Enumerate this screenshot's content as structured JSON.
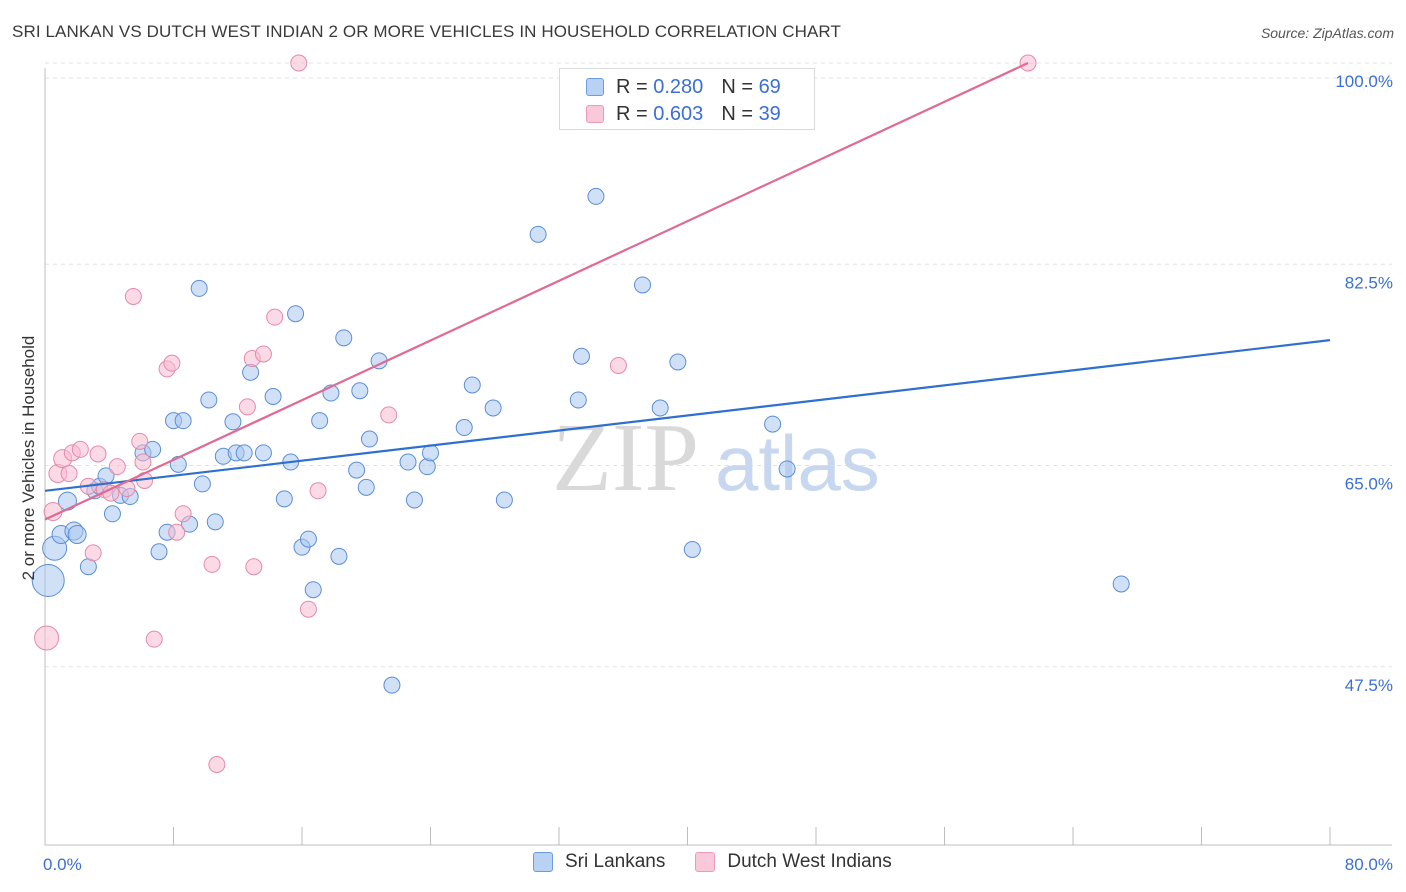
{
  "header": {
    "title": "SRI LANKAN VS DUTCH WEST INDIAN 2 OR MORE VEHICLES IN HOUSEHOLD CORRELATION CHART",
    "source": "Source: ZipAtlas.com"
  },
  "watermark": {
    "zip": "ZIP",
    "atlas": "atlas"
  },
  "legend": {
    "rows": [
      {
        "r_label": "R =",
        "r_value": "0.280",
        "n_label": "N =",
        "n_value": "69"
      },
      {
        "r_label": "R =",
        "r_value": "0.603",
        "n_label": "N =",
        "n_value": "39"
      }
    ]
  },
  "bottom_legend": {
    "series_a": "Sri Lankans",
    "series_b": "Dutch West Indians"
  },
  "colors": {
    "blue_fill": "#a9c6f0",
    "blue_stroke": "#5b8ed6",
    "blue_line": "#2f6fcf",
    "pink_fill": "#f7bcd0",
    "pink_stroke": "#e58aa8",
    "pink_line": "#e06a93",
    "tick_label": "#3b6fd3",
    "grid": "#e2e2e2"
  },
  "chart_data": {
    "type": "scatter",
    "title": "SRI LANKAN VS DUTCH WEST INDIAN 2 OR MORE VEHICLES IN HOUSEHOLD CORRELATION CHART",
    "xlabel": "",
    "ylabel": "2 or more Vehicles in Household",
    "xlim": [
      0,
      80
    ],
    "ylim": [
      32,
      102
    ],
    "x_tick_labels": [
      "0.0%",
      "80.0%"
    ],
    "y_ticks": [
      {
        "value": 100,
        "label": "100.0%"
      },
      {
        "value": 82.5,
        "label": "82.5%"
      },
      {
        "value": 65,
        "label": "65.0%"
      },
      {
        "value": 47.5,
        "label": "47.5%"
      }
    ],
    "series": [
      {
        "name": "Sri Lankans",
        "color": "blue",
        "trend": {
          "x": [
            0,
            80
          ],
          "y": [
            62.8,
            75.9
          ]
        },
        "points": [
          [
            0.2,
            55.0,
            16
          ],
          [
            0.6,
            57.8,
            12
          ],
          [
            1.0,
            59.0,
            9
          ],
          [
            1.4,
            61.9,
            9
          ],
          [
            1.8,
            59.3,
            9
          ],
          [
            2.0,
            59.0,
            9
          ],
          [
            2.7,
            56.2,
            8
          ],
          [
            3.1,
            62.8,
            8
          ],
          [
            3.4,
            63.2,
            8
          ],
          [
            3.8,
            64.1,
            8
          ],
          [
            4.2,
            60.8,
            8
          ],
          [
            4.7,
            62.4,
            8
          ],
          [
            5.3,
            62.3,
            8
          ],
          [
            6.1,
            66.1,
            8
          ],
          [
            6.7,
            66.4,
            8
          ],
          [
            7.1,
            57.5,
            8
          ],
          [
            7.6,
            59.2,
            8
          ],
          [
            8.3,
            65.1,
            8
          ],
          [
            8.0,
            68.9,
            8
          ],
          [
            8.6,
            68.9,
            8
          ],
          [
            9.0,
            59.9,
            8
          ],
          [
            9.8,
            63.4,
            8
          ],
          [
            10.2,
            70.7,
            8
          ],
          [
            10.6,
            60.1,
            8
          ],
          [
            9.6,
            80.4,
            8
          ],
          [
            11.1,
            65.8,
            8
          ],
          [
            11.7,
            68.8,
            8
          ],
          [
            11.9,
            66.1,
            8
          ],
          [
            12.4,
            66.1,
            8
          ],
          [
            12.8,
            73.1,
            8
          ],
          [
            13.6,
            66.1,
            8
          ],
          [
            14.2,
            71.0,
            8
          ],
          [
            14.9,
            62.1,
            8
          ],
          [
            15.3,
            65.3,
            8
          ],
          [
            15.6,
            78.2,
            8
          ],
          [
            16.0,
            57.9,
            8
          ],
          [
            16.4,
            58.6,
            8
          ],
          [
            16.7,
            54.2,
            8
          ],
          [
            17.1,
            68.9,
            8
          ],
          [
            17.8,
            71.3,
            8
          ],
          [
            18.3,
            57.1,
            8
          ],
          [
            18.6,
            76.1,
            8
          ],
          [
            19.4,
            64.6,
            8
          ],
          [
            19.6,
            71.5,
            8
          ],
          [
            20.0,
            63.1,
            8
          ],
          [
            20.2,
            67.3,
            8
          ],
          [
            20.8,
            74.1,
            8
          ],
          [
            21.6,
            45.9,
            8
          ],
          [
            22.6,
            65.3,
            8
          ],
          [
            23.0,
            62.0,
            8
          ],
          [
            23.8,
            64.9,
            8
          ],
          [
            24.0,
            66.1,
            8
          ],
          [
            26.1,
            68.3,
            8
          ],
          [
            26.6,
            72.0,
            8
          ],
          [
            27.9,
            70.0,
            8
          ],
          [
            28.6,
            62.0,
            8
          ],
          [
            30.7,
            85.1,
            8
          ],
          [
            33.2,
            70.7,
            8
          ],
          [
            33.4,
            74.5,
            8
          ],
          [
            34.3,
            88.4,
            8
          ],
          [
            37.2,
            80.7,
            8
          ],
          [
            38.3,
            70.0,
            8
          ],
          [
            39.4,
            74.0,
            8
          ],
          [
            40.3,
            57.7,
            8
          ],
          [
            45.3,
            68.6,
            8
          ],
          [
            46.2,
            64.7,
            8
          ],
          [
            67.0,
            54.7,
            8
          ]
        ]
      },
      {
        "name": "Dutch West Indians",
        "color": "pink",
        "trend": {
          "x": [
            0,
            61.2
          ],
          "y": [
            60.3,
            100.0
          ]
        },
        "points": [
          [
            0.1,
            50.0,
            12
          ],
          [
            0.5,
            61.0,
            9
          ],
          [
            0.8,
            64.3,
            9
          ],
          [
            1.1,
            65.6,
            9
          ],
          [
            1.5,
            64.3,
            8
          ],
          [
            1.7,
            66.1,
            8
          ],
          [
            2.2,
            66.4,
            8
          ],
          [
            2.7,
            63.2,
            8
          ],
          [
            3.0,
            57.4,
            8
          ],
          [
            3.3,
            66.0,
            8
          ],
          [
            3.7,
            62.9,
            8
          ],
          [
            4.1,
            62.6,
            8
          ],
          [
            4.5,
            64.9,
            8
          ],
          [
            5.1,
            63.0,
            8
          ],
          [
            5.5,
            79.7,
            8
          ],
          [
            5.9,
            67.1,
            8
          ],
          [
            6.1,
            65.3,
            8
          ],
          [
            6.2,
            63.7,
            8
          ],
          [
            6.8,
            49.9,
            8
          ],
          [
            7.6,
            73.4,
            8
          ],
          [
            7.9,
            73.9,
            8
          ],
          [
            8.2,
            59.2,
            8
          ],
          [
            8.6,
            60.8,
            8
          ],
          [
            10.4,
            56.4,
            8
          ],
          [
            10.7,
            39.0,
            8
          ],
          [
            12.6,
            70.1,
            8
          ],
          [
            12.9,
            74.3,
            8
          ],
          [
            13.0,
            56.2,
            8
          ],
          [
            13.6,
            74.7,
            8
          ],
          [
            14.3,
            77.9,
            8
          ],
          [
            15.8,
            100.0,
            8
          ],
          [
            16.4,
            52.5,
            8
          ],
          [
            17.0,
            62.8,
            8
          ],
          [
            21.4,
            69.4,
            8
          ],
          [
            35.7,
            73.7,
            8
          ],
          [
            61.2,
            100.0,
            8
          ]
        ]
      }
    ]
  }
}
